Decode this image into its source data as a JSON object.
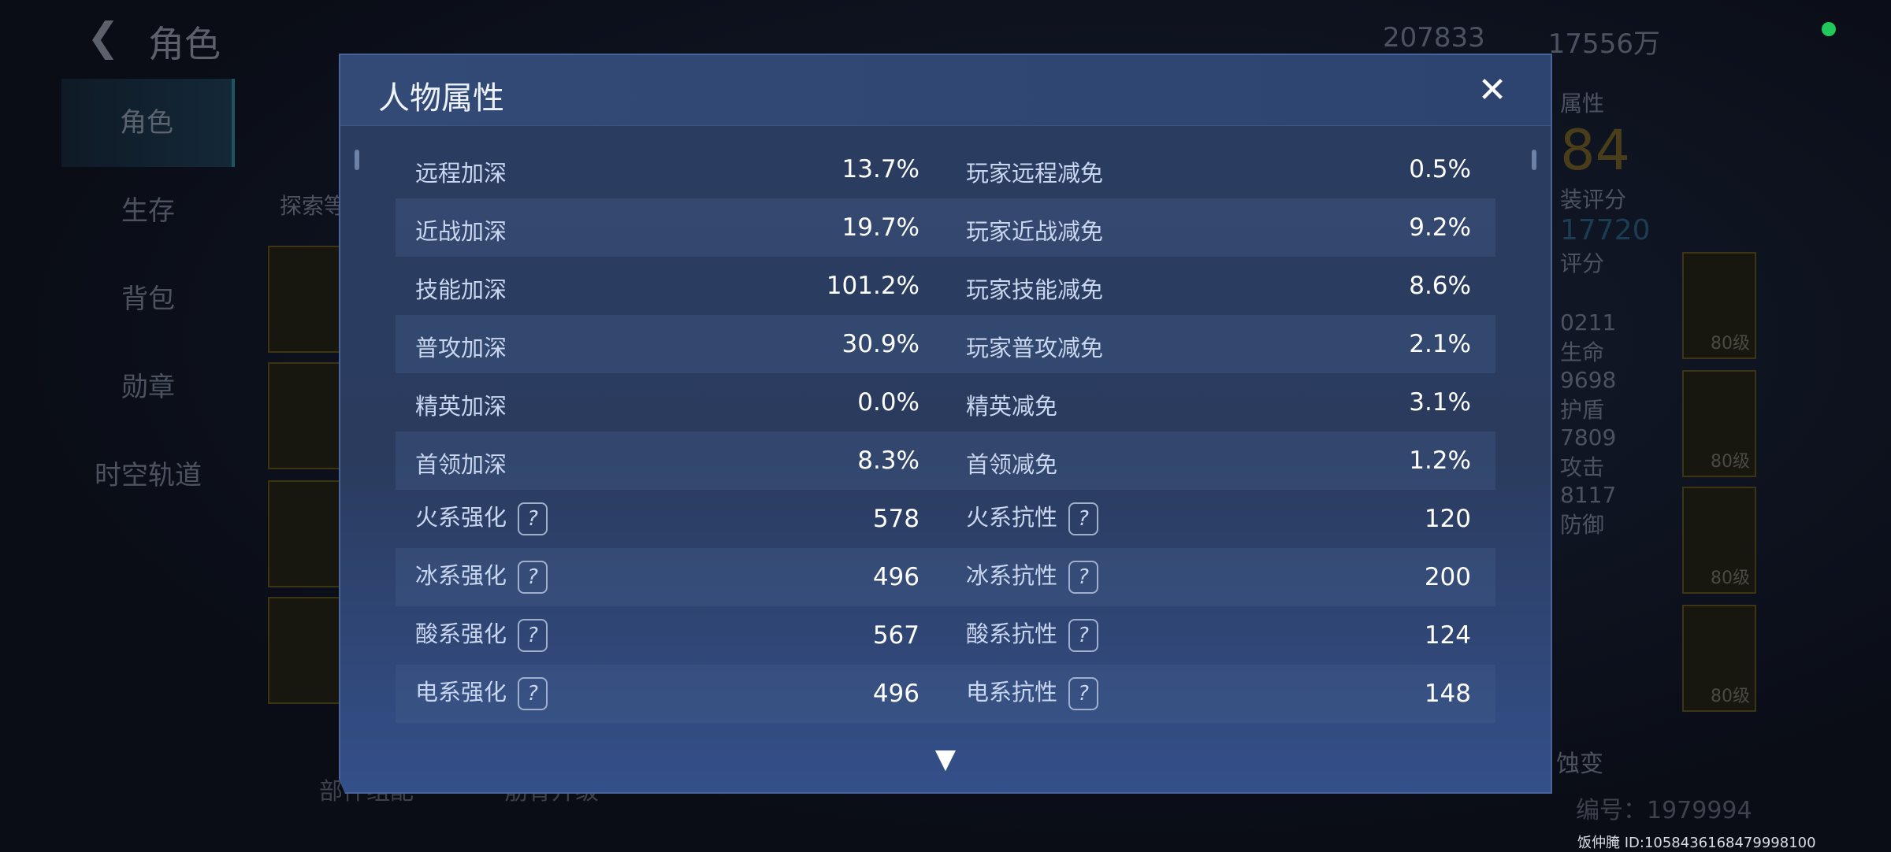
{
  "page": {
    "back_icon": "arrow-left-icon",
    "title": "角色"
  },
  "nav": [
    "角色",
    "生存",
    "背包",
    "勋章",
    "时空轨道"
  ],
  "currency": {
    "gold": "207833",
    "crystal": "17556万"
  },
  "background": {
    "explore_label": "探索等",
    "section_label": "属性",
    "power": "84",
    "equip_score": "装评分",
    "score2": "17720",
    "score2_label": "评分",
    "stats": [
      {
        "v": "0211",
        "l": "生命"
      },
      {
        "v": "9698",
        "l": "护盾"
      },
      {
        "v": "7809",
        "l": "攻击"
      },
      {
        "v": "8117",
        "l": "防御"
      }
    ],
    "gear_levels": [
      "80级",
      "80级",
      "80级",
      "80级"
    ],
    "mutation": "蚀变",
    "bottom_buttons": [
      "部件组配",
      "筋骨升级"
    ],
    "serial": "编号：1979994",
    "user_id": "饭仲腌  ID:1058436168479998100"
  },
  "modal": {
    "title": "人物属性",
    "close_icon": "close-icon",
    "rows": [
      {
        "l1": "远程加深",
        "v1": "13.7%",
        "l2": "玩家远程减免",
        "v2": "0.5%"
      },
      {
        "l1": "近战加深",
        "v1": "19.7%",
        "l2": "玩家近战减免",
        "v2": "9.2%"
      },
      {
        "l1": "技能加深",
        "v1": "101.2%",
        "l2": "玩家技能减免",
        "v2": "8.6%"
      },
      {
        "l1": "普攻加深",
        "v1": "30.9%",
        "l2": "玩家普攻减免",
        "v2": "2.1%"
      },
      {
        "l1": "精英加深",
        "v1": "0.0%",
        "l2": "精英减免",
        "v2": "3.1%"
      },
      {
        "l1": "首领加深",
        "v1": "8.3%",
        "l2": "首领减免",
        "v2": "1.2%"
      },
      {
        "l1": "火系强化",
        "v1": "578",
        "l2": "火系抗性",
        "v2": "120",
        "help": true
      },
      {
        "l1": "冰系强化",
        "v1": "496",
        "l2": "冰系抗性",
        "v2": "200",
        "help": true
      },
      {
        "l1": "酸系强化",
        "v1": "567",
        "l2": "酸系抗性",
        "v2": "124",
        "help": true
      },
      {
        "l1": "电系强化",
        "v1": "496",
        "l2": "电系抗性",
        "v2": "148",
        "help": true
      }
    ],
    "help_glyph": "?",
    "more_icon": "chevron-down-icon"
  }
}
